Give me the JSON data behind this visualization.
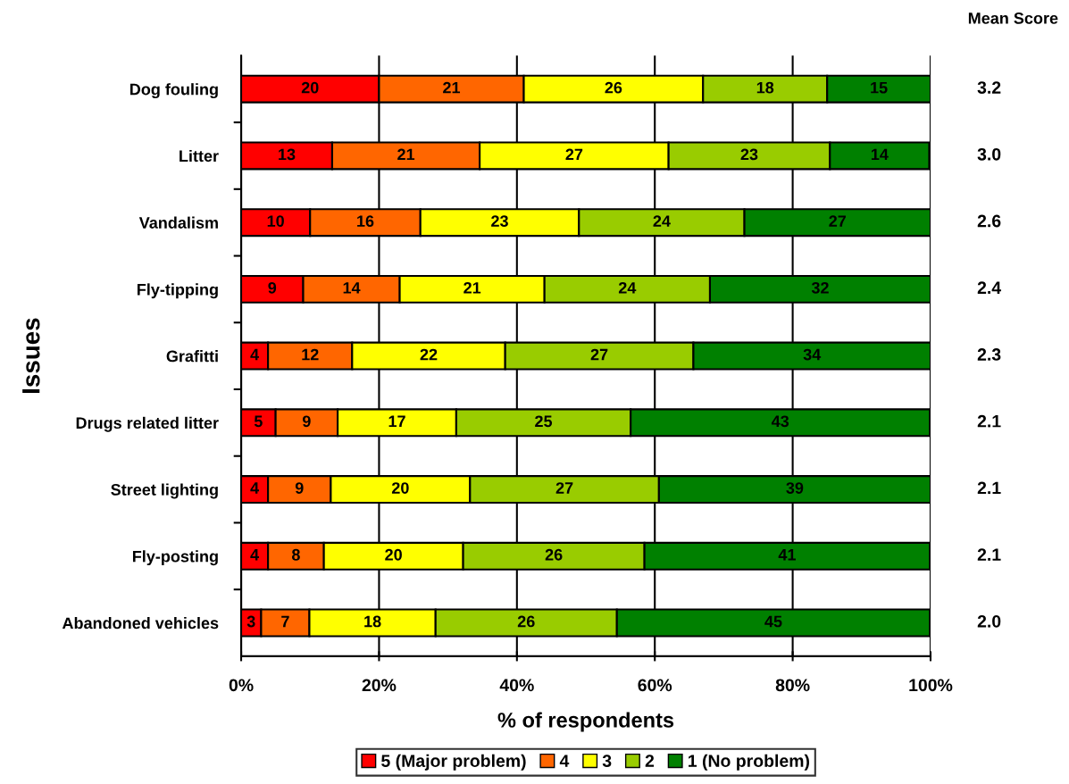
{
  "chart_data": {
    "type": "bar",
    "orientation": "horizontal",
    "stacked": true,
    "xlabel": "% of respondents",
    "ylabel": "Issues",
    "categories": [
      "Dog fouling",
      "Litter",
      "Vandalism",
      "Fly-tipping",
      "Grafitti",
      "Drugs related litter",
      "Street lighting",
      "Fly-posting",
      "Abandoned vehicles"
    ],
    "series": [
      {
        "name": "5 (Major problem)",
        "color": "#ff0000",
        "values": [
          20,
          13.2,
          10,
          9,
          3.9,
          5,
          3.9,
          3.9,
          2.9
        ],
        "value_labels": [
          "20",
          "13",
          "10",
          "9",
          "4",
          "5",
          "4",
          "4",
          "3"
        ]
      },
      {
        "name": "4",
        "color": "#ff6600",
        "values": [
          21,
          21.4,
          16,
          14,
          12.2,
          9,
          9.1,
          8.1,
          7
        ],
        "value_labels": [
          "21",
          "21",
          "16",
          "14",
          "12",
          "9",
          "9",
          "8",
          "7"
        ]
      },
      {
        "name": "3",
        "color": "#ffff00",
        "values": [
          26,
          27.4,
          23,
          21,
          22.2,
          17.2,
          20.2,
          20.2,
          18.3
        ],
        "value_labels": [
          "26",
          "27",
          "23",
          "21",
          "22",
          "17",
          "20",
          "20",
          "18"
        ]
      },
      {
        "name": "2",
        "color": "#99cc00",
        "values": [
          18,
          23.4,
          24,
          24,
          27.3,
          25.3,
          27.4,
          26.3,
          26.3
        ],
        "value_labels": [
          "18",
          "23",
          "24",
          "24",
          "27",
          "25",
          "27",
          "26",
          "26"
        ]
      },
      {
        "name": "1 (No problem)",
        "color": "#008000",
        "values": [
          15,
          14.4,
          27,
          32,
          34.4,
          43.4,
          39.4,
          41.4,
          45.4
        ],
        "value_labels": [
          "15",
          "14",
          "27",
          "32",
          "34",
          "43",
          "39",
          "41",
          "45"
        ]
      }
    ],
    "xlim": [
      0,
      100
    ],
    "xticks": [
      {
        "value": 0,
        "label": "0%"
      },
      {
        "value": 20,
        "label": "20%"
      },
      {
        "value": 40,
        "label": "40%"
      },
      {
        "value": 60,
        "label": "60%"
      },
      {
        "value": 80,
        "label": "80%"
      },
      {
        "value": 100,
        "label": "100%"
      }
    ],
    "grid": "x",
    "legend": "bottom",
    "annotations": [
      "Mean Score",
      "3.2",
      "3.0",
      "2.6",
      "2.4",
      "2.3",
      "2.1",
      "2.1",
      "2.1",
      "2.0"
    ]
  }
}
